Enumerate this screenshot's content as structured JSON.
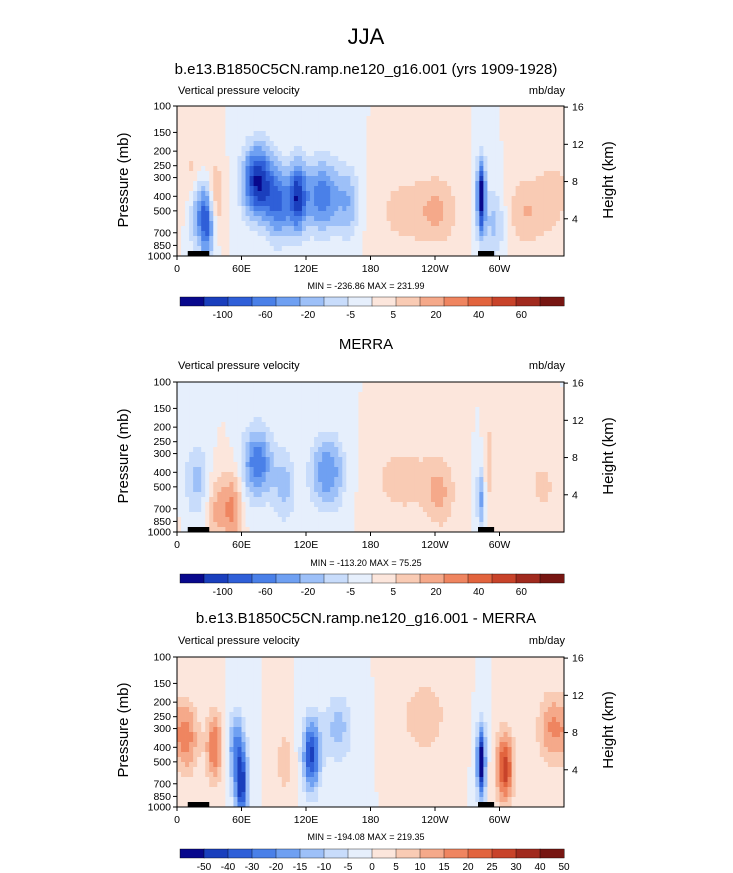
{
  "figure": {
    "title": "JJA"
  },
  "chart_data": [
    {
      "type": "heatmap",
      "title": "b.e13.B1850C5CN.ramp.ne120_g16.001 (yrs 1909-1928)",
      "left_string": "Vertical pressure velocity",
      "units": "mb/day",
      "xlabel": "",
      "ylabel": "Pressure (mb)",
      "ylabel_right": "Height (km)",
      "x_ticks": [
        "0",
        "60E",
        "120E",
        "180",
        "120W",
        "60W"
      ],
      "y_ticks": [
        "100",
        "150",
        "200",
        "250",
        "300",
        "400",
        "500",
        "700",
        "850",
        "1000"
      ],
      "y_right_ticks": [
        "4",
        "8",
        "12",
        "16"
      ],
      "stats": "MIN = -236.86  MAX = 231.99",
      "colorbar_labels": [
        "-100",
        "-60",
        "-20",
        "-5",
        "5",
        "20",
        "40",
        "60"
      ],
      "x_range": [
        0,
        360
      ],
      "y_range": [
        1000,
        100
      ],
      "regions": [
        {
          "lon": 20,
          "w": 10,
          "p": 500,
          "v": -40
        },
        {
          "lon": 28,
          "w": 7,
          "p": 600,
          "v": -60
        },
        {
          "lon": 15,
          "w": 10,
          "p": 300,
          "v": 20
        },
        {
          "lon": 35,
          "w": 8,
          "p": 400,
          "v": 30
        },
        {
          "lon": 75,
          "w": 14,
          "p": 320,
          "v": -90
        },
        {
          "lon": 95,
          "w": 12,
          "p": 450,
          "v": -60
        },
        {
          "lon": 112,
          "w": 8,
          "p": 400,
          "v": -70
        },
        {
          "lon": 135,
          "w": 18,
          "p": 400,
          "v": -60
        },
        {
          "lon": 160,
          "w": 10,
          "p": 450,
          "v": -30
        },
        {
          "lon": 215,
          "w": 30,
          "p": 500,
          "v": 20
        },
        {
          "lon": 245,
          "w": 18,
          "p": 500,
          "v": 20
        },
        {
          "lon": 283,
          "w": 4,
          "p": 400,
          "v": -100
        },
        {
          "lon": 295,
          "w": 10,
          "p": 600,
          "v": -30
        },
        {
          "lon": 325,
          "w": 18,
          "p": 500,
          "v": 25
        },
        {
          "lon": 350,
          "w": 14,
          "p": 400,
          "v": 20
        }
      ]
    },
    {
      "type": "heatmap",
      "title": "MERRA",
      "left_string": "Vertical pressure velocity",
      "units": "mb/day",
      "xlabel": "",
      "ylabel": "Pressure (mb)",
      "ylabel_right": "Height (km)",
      "x_ticks": [
        "0",
        "60E",
        "120E",
        "180",
        "120W",
        "60W"
      ],
      "y_ticks": [
        "100",
        "150",
        "200",
        "250",
        "300",
        "400",
        "500",
        "700",
        "850",
        "1000"
      ],
      "y_right_ticks": [
        "4",
        "8",
        "12",
        "16"
      ],
      "stats": "MIN = -113.20  MAX = 75.25",
      "colorbar_labels": [
        "-100",
        "-60",
        "-20",
        "-5",
        "5",
        "20",
        "40",
        "60"
      ],
      "x_range": [
        0,
        360
      ],
      "y_range": [
        1000,
        100
      ],
      "regions": [
        {
          "lon": 18,
          "w": 12,
          "p": 450,
          "v": -30
        },
        {
          "lon": 38,
          "w": 10,
          "p": 700,
          "v": 30
        },
        {
          "lon": 52,
          "w": 8,
          "p": 700,
          "v": 40
        },
        {
          "lon": 75,
          "w": 14,
          "p": 350,
          "v": -60
        },
        {
          "lon": 100,
          "w": 10,
          "p": 500,
          "v": -30
        },
        {
          "lon": 140,
          "w": 16,
          "p": 400,
          "v": -50
        },
        {
          "lon": 210,
          "w": 30,
          "p": 450,
          "v": 20
        },
        {
          "lon": 245,
          "w": 14,
          "p": 550,
          "v": 25
        },
        {
          "lon": 283,
          "w": 4,
          "p": 600,
          "v": -40
        },
        {
          "lon": 290,
          "w": 5,
          "p": 350,
          "v": 25
        },
        {
          "lon": 340,
          "w": 18,
          "p": 500,
          "v": 15
        }
      ]
    },
    {
      "type": "heatmap",
      "title": "b.e13.B1850C5CN.ramp.ne120_g16.001 - MERRA",
      "left_string": "Vertical pressure velocity",
      "units": "mb/day",
      "xlabel": "",
      "ylabel": "Pressure (mb)",
      "ylabel_right": "Height (km)",
      "x_ticks": [
        "0",
        "60E",
        "120E",
        "180",
        "120W",
        "60W"
      ],
      "y_ticks": [
        "100",
        "150",
        "200",
        "250",
        "300",
        "400",
        "500",
        "700",
        "850",
        "1000"
      ],
      "y_right_ticks": [
        "4",
        "8",
        "12",
        "16"
      ],
      "stats": "MIN = -194.08  MAX = 219.35",
      "colorbar_labels": [
        "-50",
        "-40",
        "-30",
        "-20",
        "-15",
        "-10",
        "-5",
        "0",
        "5",
        "10",
        "15",
        "20",
        "25",
        "30",
        "40",
        "50"
      ],
      "x_range": [
        0,
        360
      ],
      "y_range": [
        1000,
        100
      ],
      "regions": [
        {
          "lon": 10,
          "w": 10,
          "p": 350,
          "v": 20
        },
        {
          "lon": 35,
          "w": 8,
          "p": 400,
          "v": 25
        },
        {
          "lon": 55,
          "w": 8,
          "p": 400,
          "v": -25
        },
        {
          "lon": 60,
          "w": 6,
          "p": 750,
          "v": -40
        },
        {
          "lon": 100,
          "w": 8,
          "p": 500,
          "v": 10
        },
        {
          "lon": 125,
          "w": 8,
          "p": 450,
          "v": -40
        },
        {
          "lon": 150,
          "w": 14,
          "p": 300,
          "v": -15
        },
        {
          "lon": 230,
          "w": 20,
          "p": 250,
          "v": 12
        },
        {
          "lon": 283,
          "w": 4,
          "p": 500,
          "v": -50
        },
        {
          "lon": 305,
          "w": 8,
          "p": 550,
          "v": 35
        },
        {
          "lon": 350,
          "w": 14,
          "p": 300,
          "v": 20
        }
      ]
    }
  ],
  "palette": [
    "#08088c",
    "#1a3fbd",
    "#2f5fd8",
    "#4a80e8",
    "#6fa0f2",
    "#9dc0f8",
    "#c8dcfb",
    "#e6effc",
    "#fce6dc",
    "#f9cbb4",
    "#f5a98a",
    "#ef8560",
    "#e2643e",
    "#c8432a",
    "#a12a1e",
    "#771612"
  ]
}
